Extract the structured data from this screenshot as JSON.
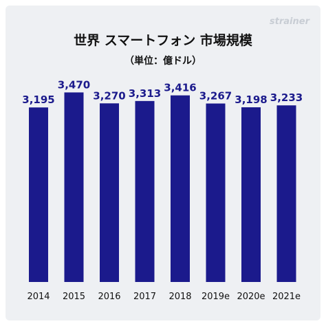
{
  "brand": "strainer",
  "chart_data": {
    "type": "bar",
    "title": "世界 スマートフォン 市場規模",
    "subtitle": "（単位：億ドル）",
    "categories": [
      "2014",
      "2015",
      "2016",
      "2017",
      "2018",
      "2019e",
      "2020e",
      "2021e"
    ],
    "values": [
      3195,
      3470,
      3270,
      3313,
      3416,
      3267,
      3198,
      3233
    ],
    "value_labels": [
      "3,195",
      "3,470",
      "3,270",
      "3,313",
      "3,416",
      "3,267",
      "3,198",
      "3,233"
    ],
    "ylim": [
      0,
      3500
    ],
    "grid": false,
    "bar_color": "#1b1a8c",
    "label_color": "#1b1a8c"
  }
}
